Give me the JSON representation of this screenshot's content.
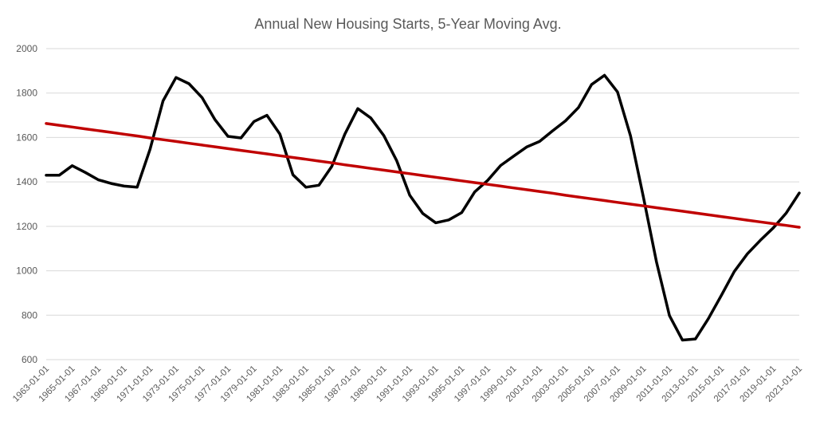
{
  "chart_data": {
    "type": "line",
    "title": "Annual New Housing Starts, 5-Year Moving Avg.",
    "xlabel": "",
    "ylabel": "",
    "ylim": [
      600,
      2000
    ],
    "yticks": [
      600,
      800,
      1000,
      1200,
      1400,
      1600,
      1800,
      2000
    ],
    "grid": true,
    "legend": "none",
    "x": [
      "1963-01-01",
      "1964-01-01",
      "1965-01-01",
      "1966-01-01",
      "1967-01-01",
      "1968-01-01",
      "1969-01-01",
      "1970-01-01",
      "1971-01-01",
      "1972-01-01",
      "1973-01-01",
      "1974-01-01",
      "1975-01-01",
      "1976-01-01",
      "1977-01-01",
      "1978-01-01",
      "1979-01-01",
      "1980-01-01",
      "1981-01-01",
      "1982-01-01",
      "1983-01-01",
      "1984-01-01",
      "1985-01-01",
      "1986-01-01",
      "1987-01-01",
      "1988-01-01",
      "1989-01-01",
      "1990-01-01",
      "1991-01-01",
      "1992-01-01",
      "1993-01-01",
      "1994-01-01",
      "1995-01-01",
      "1996-01-01",
      "1997-01-01",
      "1998-01-01",
      "1999-01-01",
      "2000-01-01",
      "2001-01-01",
      "2002-01-01",
      "2003-01-01",
      "2004-01-01",
      "2005-01-01",
      "2006-01-01",
      "2007-01-01",
      "2008-01-01",
      "2009-01-01",
      "2010-01-01",
      "2011-01-01",
      "2012-01-01",
      "2013-01-01",
      "2014-01-01",
      "2015-01-01",
      "2016-01-01",
      "2017-01-01",
      "2018-01-01",
      "2019-01-01",
      "2020-01-01",
      "2021-01-01"
    ],
    "xtick_labels": [
      "1963-01-01",
      "1965-01-01",
      "1967-01-01",
      "1969-01-01",
      "1971-01-01",
      "1973-01-01",
      "1975-01-01",
      "1977-01-01",
      "1979-01-01",
      "1981-01-01",
      "1983-01-01",
      "1985-01-01",
      "1987-01-01",
      "1989-01-01",
      "1991-01-01",
      "1993-01-01",
      "1995-01-01",
      "1997-01-01",
      "1999-01-01",
      "2001-01-01",
      "2003-01-01",
      "2005-01-01",
      "2007-01-01",
      "2009-01-01",
      "2011-01-01",
      "2013-01-01",
      "2015-01-01",
      "2017-01-01",
      "2019-01-01",
      "2021-01-01"
    ],
    "series": [
      {
        "color": "#000000",
        "values": [
          1430,
          1430,
          1473,
          1443,
          1410,
          1393,
          1381,
          1376,
          1547,
          1765,
          1870,
          1842,
          1780,
          1680,
          1605,
          1598,
          1672,
          1700,
          1615,
          1432,
          1376,
          1385,
          1470,
          1615,
          1730,
          1688,
          1609,
          1495,
          1340,
          1258,
          1216,
          1229,
          1262,
          1355,
          1407,
          1474,
          1516,
          1557,
          1582,
          1630,
          1675,
          1735,
          1838,
          1880,
          1805,
          1608,
          1330,
          1040,
          798,
          688,
          693,
          784,
          889,
          997,
          1076,
          1137,
          1193,
          1260,
          1350
        ]
      },
      {
        "color": "#c00000",
        "values": [
          1663,
          1655,
          1647,
          1639,
          1631,
          1623,
          1615,
          1607,
          1598,
          1590,
          1582,
          1574,
          1566,
          1558,
          1550,
          1542,
          1534,
          1526,
          1518,
          1510,
          1502,
          1494,
          1486,
          1477,
          1469,
          1461,
          1453,
          1445,
          1437,
          1429,
          1421,
          1413,
          1405,
          1397,
          1389,
          1381,
          1373,
          1365,
          1357,
          1349,
          1340,
          1332,
          1324,
          1316,
          1308,
          1300,
          1292,
          1284,
          1276,
          1268,
          1260,
          1252,
          1244,
          1236,
          1228,
          1220,
          1212,
          1204,
          1196
        ]
      }
    ]
  }
}
